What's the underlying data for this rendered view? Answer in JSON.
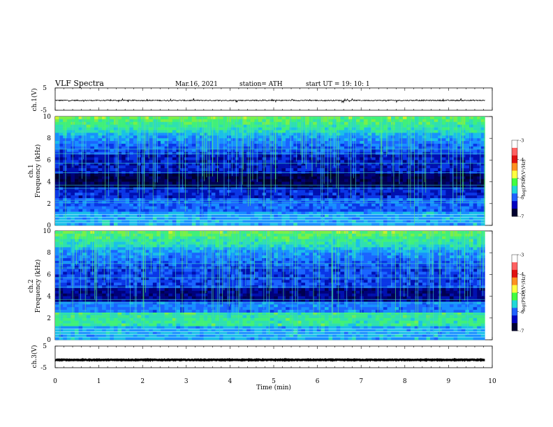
{
  "header": {
    "title": "VLF  Spectra",
    "date": "Mar.16, 2021",
    "station": "station= ATH",
    "start": "start  UT  =    19: 10: 1"
  },
  "colors": {
    "background": "#ffffff",
    "trace": "#000000",
    "spectrogram_low": "#00004a",
    "spectrogram_mid": "#1a44ff",
    "spectrogram_high": "#3fe07a"
  },
  "chart_data": [
    {
      "type": "line",
      "name": "ch1-time-series",
      "ylabel": "ch.1(V)",
      "ylim": [
        -5,
        5
      ],
      "yticks": [
        "5",
        "-5"
      ],
      "xlim": [
        0,
        10
      ],
      "approx_level": -0.6,
      "approx_noise": 0.25,
      "duration_min": 9.83
    },
    {
      "type": "heatmap",
      "name": "ch1-spectrogram",
      "ylabel": "ch.1\nFrequency  (kHz)",
      "ylabel_top": "ch.1",
      "ylabel_bottom": "Frequency  (kHz)",
      "ylim": [
        0,
        10
      ],
      "yticks": [
        "0",
        "2",
        "4",
        "6",
        "8",
        "10"
      ],
      "xlim": [
        0,
        10
      ],
      "duration_min": 9.83,
      "colorbar": {
        "label": "log(PSD)(V²/Hz)",
        "range": [
          -7,
          -3
        ],
        "ticks": [
          "-3",
          "-4",
          "-5",
          "-6",
          "-7"
        ]
      }
    },
    {
      "type": "heatmap",
      "name": "ch2-spectrogram",
      "ylabel_top": "ch.2",
      "ylabel_bottom": "Frequency  (kHz)",
      "ylim": [
        0,
        10
      ],
      "yticks": [
        "0",
        "2",
        "4",
        "6",
        "8",
        "10"
      ],
      "xlim": [
        0,
        10
      ],
      "duration_min": 9.83,
      "colorbar": {
        "label": "log(PSD)(V²/Hz)",
        "range": [
          -7,
          -3
        ],
        "ticks": [
          "-3",
          "-4",
          "-5",
          "-6",
          "-7"
        ]
      }
    },
    {
      "type": "line",
      "name": "ch3-time-series",
      "ylabel": "ch.3(V)",
      "ylim": [
        -5,
        5
      ],
      "yticks": [
        "5",
        "-5"
      ],
      "xlim": [
        0,
        10
      ],
      "approx_level": -1.4,
      "approx_noise": 0.15,
      "duration_min": 9.83
    }
  ],
  "xaxis": {
    "label": "Time  (min)",
    "ticks": [
      "0",
      "1",
      "2",
      "3",
      "4",
      "5",
      "6",
      "7",
      "8",
      "9",
      "10"
    ],
    "range": [
      0,
      10
    ]
  }
}
